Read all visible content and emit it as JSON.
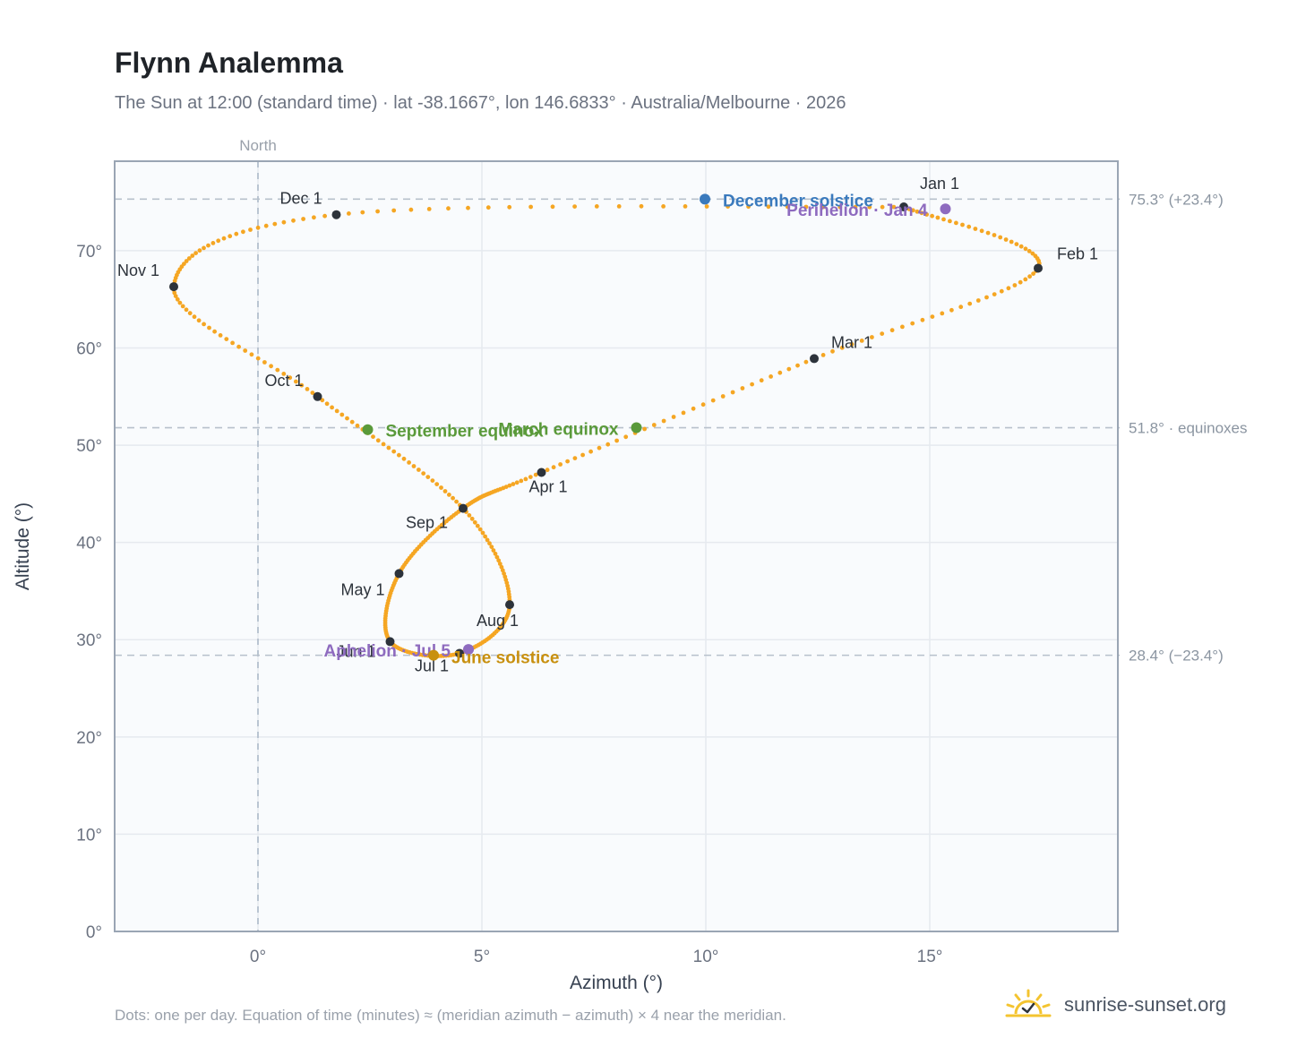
{
  "header": {
    "title": "Flynn Analemma",
    "subtitle": "The Sun at 12:00 (standard time) · lat -38.1667°, lon 146.6833° · Australia/Melbourne · 2026"
  },
  "footer": {
    "note": "Dots: one per day. Equation of time (minutes) ≈ (meridian azimuth − azimuth) × 4 near the meridian.",
    "brand": "sunrise-sunset.org",
    "brand_icon": "sun-check-icon"
  },
  "colors": {
    "path": "#f5a623",
    "month_marker": "#2d333b",
    "equinox": "#5a9a3a",
    "december_solstice": "#3a7abd",
    "june_solstice": "#c8900f",
    "apsis": "#8e6bbf",
    "reference_line": "#b8c1cc",
    "plot_background": "#f9fbfd",
    "frame": "#9aa5b4"
  },
  "chart_data": {
    "type": "scatter",
    "xlabel": "Azimuth (°)",
    "ylabel": "Altitude (°)",
    "xlim": [
      -3.2,
      19.2
    ],
    "ylim": [
      0,
      79.2
    ],
    "x_ticks": [
      0,
      5,
      10,
      15
    ],
    "x_tick_labels": [
      "0°",
      "5°",
      "10°",
      "15°"
    ],
    "y_ticks": [
      0,
      10,
      20,
      30,
      40,
      50,
      60,
      70
    ],
    "y_tick_labels": [
      "0°",
      "10°",
      "20°",
      "30°",
      "40°",
      "50°",
      "60°",
      "70°"
    ],
    "grid": true,
    "north_line": {
      "x": 0,
      "label": "North"
    },
    "reference_lines": [
      {
        "y": 75.3,
        "label": "75.3° (+23.4°)"
      },
      {
        "y": 51.8,
        "label": "51.8° · equinoxes"
      },
      {
        "y": 28.4,
        "label": "28.4° (−23.4°)"
      }
    ],
    "daily_path": {
      "description": "one dot per day, passing through the month markers in order",
      "series": [
        [
          17.42,
          68.2
        ],
        [
          12.42,
          58.9
        ],
        [
          6.33,
          47.2
        ],
        [
          4.58,
          43.5
        ],
        [
          3.15,
          36.8
        ],
        [
          2.95,
          29.8
        ],
        [
          4.5,
          28.6
        ],
        [
          5.62,
          33.6
        ],
        [
          4.58,
          43.5
        ],
        [
          1.33,
          55.0
        ],
        [
          -1.88,
          66.3
        ],
        [
          1.75,
          73.7
        ],
        [
          14.42,
          74.5
        ]
      ]
    },
    "month_markers": [
      {
        "label": "Jan 1",
        "x": 14.42,
        "y": 74.5
      },
      {
        "label": "Feb 1",
        "x": 17.42,
        "y": 68.2
      },
      {
        "label": "Mar 1",
        "x": 12.42,
        "y": 58.9
      },
      {
        "label": "Apr 1",
        "x": 6.33,
        "y": 47.2
      },
      {
        "label": "May 1",
        "x": 3.15,
        "y": 36.8
      },
      {
        "label": "Jun 1",
        "x": 2.95,
        "y": 29.8
      },
      {
        "label": "Jul 1",
        "x": 4.5,
        "y": 28.6
      },
      {
        "label": "Aug 1",
        "x": 5.62,
        "y": 33.6
      },
      {
        "label": "Sep 1",
        "x": 4.58,
        "y": 43.5
      },
      {
        "label": "Oct 1",
        "x": 1.33,
        "y": 55.0
      },
      {
        "label": "Nov 1",
        "x": -1.88,
        "y": 66.3
      },
      {
        "label": "Dec 1",
        "x": 1.75,
        "y": 73.7
      }
    ],
    "events": [
      {
        "label": "December solstice",
        "x": 9.98,
        "y": 75.3,
        "kind": "december_solstice"
      },
      {
        "label": "Perihelion · Jan 4",
        "x": 15.35,
        "y": 74.3,
        "kind": "apsis"
      },
      {
        "label": "March equinox",
        "x": 8.45,
        "y": 51.8,
        "kind": "equinox"
      },
      {
        "label": "September equinox",
        "x": 2.45,
        "y": 51.6,
        "kind": "equinox"
      },
      {
        "label": "Aphelion · Jul 5",
        "x": 4.7,
        "y": 29.0,
        "kind": "apsis"
      },
      {
        "label": "June solstice",
        "x": 3.92,
        "y": 28.4,
        "kind": "june_solstice"
      }
    ]
  }
}
